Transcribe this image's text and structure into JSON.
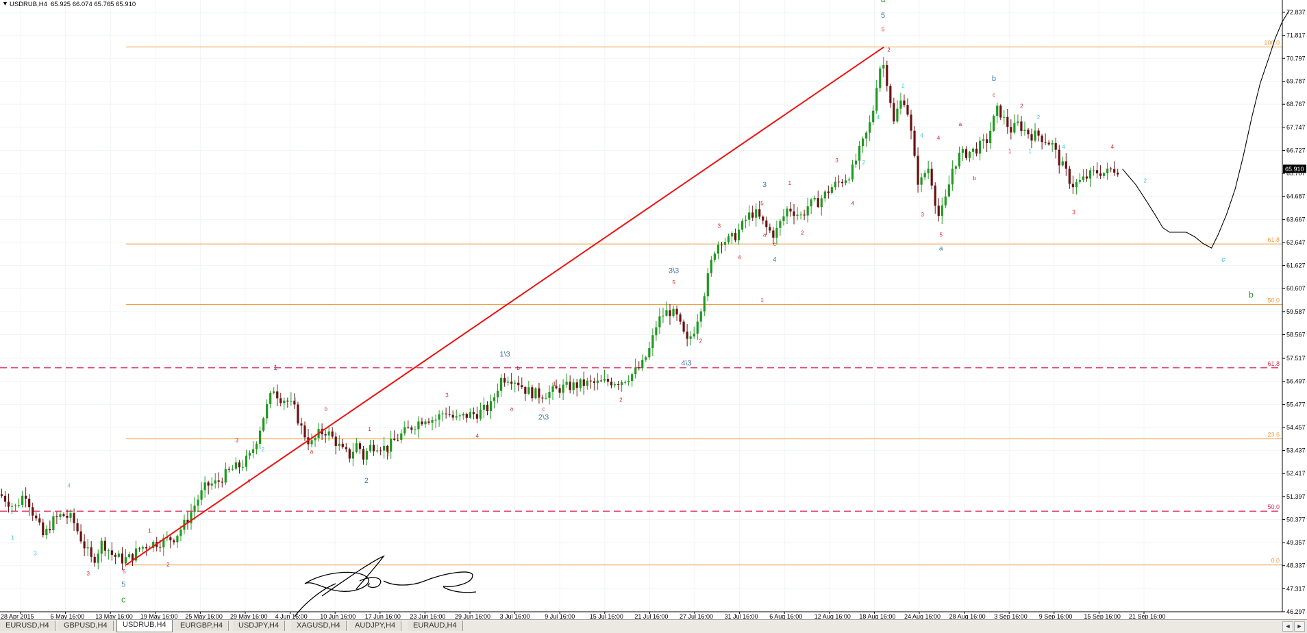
{
  "header": {
    "symbol": "USDRUB,H4",
    "quote": "65.925 66.074 65.765 65.910"
  },
  "colors": {
    "up": "#1e9a1e",
    "down": "#6b1010",
    "fib": "#f0a040",
    "trend": "#ee1111",
    "dash": "#e0305a",
    "wave_red": "#e02020",
    "wave_cyan": "#38c8d8",
    "wave_blue": "#4a78a8",
    "wave_green": "#2e9a2e",
    "projection": "#000000",
    "price_box": "#000000"
  },
  "chart_data": {
    "type": "candlestick",
    "title": "USDRUB,H4",
    "ylim": [
      46.297,
      72.837
    ],
    "y_ticks": [
      "72.837",
      "71.817",
      "70.797",
      "69.787",
      "68.767",
      "67.747",
      "66.727",
      "65.707",
      "64.687",
      "63.667",
      "62.647",
      "61.627",
      "60.607",
      "59.587",
      "58.567",
      "57.517",
      "56.497",
      "55.477",
      "54.457",
      "53.437",
      "52.417",
      "51.397",
      "50.377",
      "49.357",
      "48.337",
      "47.317",
      "46.297"
    ],
    "x_labels": [
      "28 Apr 2015",
      "6 May 16:00",
      "13 May 16:00",
      "19 May 16:00",
      "25 May 16:00",
      "29 May 16:00",
      "4 Jun 16:00",
      "10 Jun 16:00",
      "17 Jun 16:00",
      "23 Jun 16:00",
      "29 Jun 16:00",
      "3 Jul 16:00",
      "9 Jul 16:00",
      "15 Jul 16:00",
      "21 Jul 16:00",
      "27 Jul 16:00",
      "31 Jul 16:00",
      "6 Aug 16:00",
      "12 Aug 16:00",
      "18 Aug 16:00",
      "24 Aug 16:00",
      "28 Aug 16:00",
      "3 Sep 16:00",
      "9 Sep 16:00",
      "15 Sep 16:00",
      "21 Sep 16:00"
    ],
    "current_price": "65.910",
    "path": [
      [
        0,
        51.5
      ],
      [
        18,
        50.9
      ],
      [
        30,
        51.6
      ],
      [
        40,
        50.6
      ],
      [
        52,
        49.6
      ],
      [
        62,
        50.3
      ],
      [
        74,
        50.6
      ],
      [
        86,
        50.4
      ],
      [
        98,
        49.4
      ],
      [
        110,
        48.5
      ],
      [
        122,
        49.4
      ],
      [
        134,
        48.8
      ],
      [
        146,
        48.6
      ],
      [
        156,
        48.7
      ],
      [
        166,
        49.1
      ],
      [
        178,
        49.3
      ],
      [
        192,
        49.4
      ],
      [
        208,
        49.6
      ],
      [
        222,
        50.3
      ],
      [
        234,
        51.2
      ],
      [
        246,
        51.9
      ],
      [
        258,
        52.0
      ],
      [
        266,
        52.3
      ],
      [
        276,
        52.6
      ],
      [
        288,
        52.8
      ],
      [
        298,
        53.2
      ],
      [
        306,
        54.0
      ],
      [
        314,
        55.0
      ],
      [
        320,
        55.6
      ],
      [
        326,
        56.2
      ],
      [
        332,
        55.8
      ],
      [
        340,
        55.7
      ],
      [
        350,
        55.3
      ],
      [
        360,
        54.3
      ],
      [
        370,
        53.7
      ],
      [
        380,
        54.2
      ],
      [
        388,
        54.3
      ],
      [
        398,
        53.9
      ],
      [
        408,
        53.4
      ],
      [
        416,
        53.2
      ],
      [
        426,
        53.8
      ],
      [
        432,
        53.1
      ],
      [
        440,
        53.6
      ],
      [
        450,
        53.7
      ],
      [
        460,
        53.5
      ],
      [
        470,
        53.9
      ],
      [
        480,
        54.2
      ],
      [
        494,
        54.6
      ],
      [
        506,
        54.9
      ],
      [
        518,
        54.8
      ],
      [
        530,
        55.2
      ],
      [
        542,
        54.8
      ],
      [
        556,
        55.0
      ],
      [
        570,
        55.1
      ],
      [
        584,
        55.4
      ],
      [
        596,
        56.6
      ],
      [
        606,
        56.7
      ],
      [
        616,
        56.5
      ],
      [
        626,
        56.1
      ],
      [
        640,
        55.9
      ],
      [
        654,
        56.0
      ],
      [
        668,
        56.2
      ],
      [
        682,
        56.3
      ],
      [
        696,
        56.4
      ],
      [
        710,
        56.4
      ],
      [
        724,
        56.5
      ],
      [
        738,
        56.5
      ],
      [
        752,
        56.8
      ],
      [
        764,
        57.2
      ],
      [
        774,
        58.0
      ],
      [
        782,
        59.1
      ],
      [
        790,
        59.5
      ],
      [
        798,
        59.6
      ],
      [
        806,
        59.3
      ],
      [
        812,
        58.7
      ],
      [
        818,
        58.2
      ],
      [
        826,
        58.8
      ],
      [
        834,
        59.8
      ],
      [
        842,
        61.0
      ],
      [
        850,
        62.3
      ],
      [
        858,
        62.8
      ],
      [
        866,
        62.7
      ],
      [
        874,
        62.9
      ],
      [
        882,
        63.3
      ],
      [
        890,
        63.8
      ],
      [
        898,
        64.0
      ],
      [
        906,
        63.6
      ],
      [
        914,
        63.2
      ],
      [
        922,
        63.0
      ],
      [
        930,
        63.6
      ],
      [
        938,
        64.2
      ],
      [
        946,
        64.0
      ],
      [
        954,
        63.8
      ],
      [
        962,
        64.3
      ],
      [
        972,
        64.4
      ],
      [
        980,
        64.7
      ],
      [
        990,
        65.1
      ],
      [
        998,
        65.3
      ],
      [
        1006,
        65.5
      ],
      [
        1014,
        65.8
      ],
      [
        1022,
        66.6
      ],
      [
        1030,
        67.3
      ],
      [
        1038,
        68.2
      ],
      [
        1046,
        70.4
      ],
      [
        1052,
        70.5
      ],
      [
        1058,
        69.4
      ],
      [
        1064,
        67.9
      ],
      [
        1070,
        68.8
      ],
      [
        1076,
        69.0
      ],
      [
        1082,
        68.2
      ],
      [
        1088,
        66.4
      ],
      [
        1094,
        65.1
      ],
      [
        1100,
        65.7
      ],
      [
        1106,
        66.0
      ],
      [
        1112,
        64.7
      ],
      [
        1118,
        63.7
      ],
      [
        1126,
        64.6
      ],
      [
        1134,
        66.0
      ],
      [
        1142,
        66.5
      ],
      [
        1150,
        66.6
      ],
      [
        1158,
        66.7
      ],
      [
        1166,
        66.9
      ],
      [
        1174,
        67.1
      ],
      [
        1182,
        68.0
      ],
      [
        1188,
        68.6
      ],
      [
        1196,
        68.0
      ],
      [
        1204,
        67.6
      ],
      [
        1212,
        67.9
      ],
      [
        1220,
        67.6
      ],
      [
        1228,
        67.4
      ],
      [
        1236,
        67.4
      ],
      [
        1244,
        67.2
      ],
      [
        1252,
        67.0
      ],
      [
        1260,
        66.3
      ],
      [
        1268,
        65.8
      ],
      [
        1276,
        65.2
      ],
      [
        1284,
        65.3
      ],
      [
        1292,
        65.5
      ],
      [
        1300,
        65.7
      ],
      [
        1308,
        65.8
      ],
      [
        1316,
        65.7
      ],
      [
        1324,
        65.9
      ],
      [
        1332,
        65.9
      ]
    ],
    "projection_line": [
      [
        1336,
        65.9
      ],
      [
        1352,
        65.2
      ],
      [
        1366,
        64.4
      ],
      [
        1376,
        63.8
      ],
      [
        1384,
        63.3
      ],
      [
        1392,
        63.1
      ],
      [
        1400,
        63.1
      ],
      [
        1412,
        63.1
      ],
      [
        1422,
        62.9
      ],
      [
        1432,
        62.6
      ],
      [
        1442,
        62.4
      ],
      [
        1450,
        63.0
      ],
      [
        1460,
        63.9
      ],
      [
        1470,
        65.0
      ],
      [
        1480,
        66.5
      ],
      [
        1490,
        68.2
      ],
      [
        1500,
        69.7
      ],
      [
        1510,
        70.8
      ],
      [
        1518,
        71.7
      ],
      [
        1526,
        72.4
      ],
      [
        1534,
        72.9
      ]
    ],
    "fib_levels": [
      {
        "label": "100.0",
        "price": 71.3
      },
      {
        "label": "61.8",
        "price": 62.58
      },
      {
        "label": "50.0",
        "price": 59.9
      },
      {
        "label": "23.6",
        "price": 53.95
      },
      {
        "label": "0.0",
        "price": 48.37
      }
    ],
    "dashed_levels": [
      {
        "label": "61.8",
        "price": 57.1
      },
      {
        "label": "50.0",
        "price": 50.75
      }
    ],
    "trend_line": [
      [
        150,
        48.37
      ],
      [
        1052,
        71.3
      ]
    ],
    "wave_labels": [
      {
        "t": "a",
        "x": 1051,
        "p": 73.3,
        "c": "wave_green",
        "s": 12
      },
      {
        "t": "5",
        "x": 1051,
        "p": 72.6,
        "c": "wave_blue",
        "s": 11
      },
      {
        "t": "5",
        "x": 1051,
        "p": 72.0,
        "c": "wave_red",
        "s": 8
      },
      {
        "t": "2",
        "x": 1058,
        "p": 71.1,
        "c": "wave_red",
        "s": 8
      },
      {
        "t": "2",
        "x": 1075,
        "p": 69.5,
        "c": "wave_cyan",
        "s": 8
      },
      {
        "t": "3",
        "x": 1098,
        "p": 63.8,
        "c": "wave_red",
        "s": 8
      },
      {
        "t": "4",
        "x": 1117,
        "p": 67.2,
        "c": "wave_red",
        "s": 8
      },
      {
        "t": "4",
        "x": 1097,
        "p": 67.3,
        "c": "wave_cyan",
        "s": 8
      },
      {
        "t": "5",
        "x": 1120,
        "p": 62.9,
        "c": "wave_red",
        "s": 8
      },
      {
        "t": "a",
        "x": 1120,
        "p": 62.3,
        "c": "wave_blue",
        "s": 10
      },
      {
        "t": "a",
        "x": 1143,
        "p": 67.8,
        "c": "wave_red",
        "s": 8
      },
      {
        "t": "b",
        "x": 1160,
        "p": 65.4,
        "c": "wave_red",
        "s": 8
      },
      {
        "t": "b",
        "x": 1183,
        "p": 69.8,
        "c": "wave_blue",
        "s": 11
      },
      {
        "t": "c",
        "x": 1183,
        "p": 69.1,
        "c": "wave_red",
        "s": 8
      },
      {
        "t": "2",
        "x": 1216,
        "p": 68.6,
        "c": "wave_red",
        "s": 8
      },
      {
        "t": "1",
        "x": 1202,
        "p": 66.6,
        "c": "wave_red",
        "s": 8
      },
      {
        "t": "1",
        "x": 1226,
        "p": 66.6,
        "c": "wave_cyan",
        "s": 8
      },
      {
        "t": "2",
        "x": 1236,
        "p": 68.1,
        "c": "wave_cyan",
        "s": 8
      },
      {
        "t": "4",
        "x": 1266,
        "p": 66.8,
        "c": "wave_cyan",
        "s": 8
      },
      {
        "t": "3",
        "x": 1278,
        "p": 63.9,
        "c": "wave_red",
        "s": 8
      },
      {
        "t": "4",
        "x": 1324,
        "p": 66.8,
        "c": "wave_red",
        "s": 8
      },
      {
        "t": "2",
        "x": 1363,
        "p": 65.3,
        "c": "wave_cyan",
        "s": 8
      },
      {
        "t": "c",
        "x": 1456,
        "p": 61.8,
        "c": "wave_cyan",
        "s": 10
      },
      {
        "t": "b",
        "x": 1489,
        "p": 60.2,
        "c": "wave_green",
        "s": 13
      },
      {
        "t": "3",
        "x": 910,
        "p": 65.1,
        "c": "wave_blue",
        "s": 11
      },
      {
        "t": "5",
        "x": 907,
        "p": 64.3,
        "c": "wave_red",
        "s": 8
      },
      {
        "t": "1",
        "x": 940,
        "p": 65.2,
        "c": "wave_red",
        "s": 8
      },
      {
        "t": "3",
        "x": 996,
        "p": 66.2,
        "c": "wave_red",
        "s": 8
      },
      {
        "t": "4",
        "x": 1015,
        "p": 64.3,
        "c": "wave_red",
        "s": 8
      },
      {
        "t": "4",
        "x": 922,
        "p": 61.8,
        "c": "wave_blue",
        "s": 10
      },
      {
        "t": "c",
        "x": 922,
        "p": 62.5,
        "c": "wave_red",
        "s": 8
      },
      {
        "t": "a",
        "x": 910,
        "p": 62.9,
        "c": "wave_red",
        "s": 8
      },
      {
        "t": "2",
        "x": 955,
        "p": 63.0,
        "c": "wave_red",
        "s": 8
      },
      {
        "t": "1",
        "x": 907,
        "p": 60.0,
        "c": "wave_red",
        "s": 8
      },
      {
        "t": "3",
        "x": 856,
        "p": 63.3,
        "c": "wave_red",
        "s": 8
      },
      {
        "t": "4",
        "x": 880,
        "p": 61.9,
        "c": "wave_red",
        "s": 8
      },
      {
        "t": "3\\3",
        "x": 802,
        "p": 61.3,
        "c": "wave_blue",
        "s": 11
      },
      {
        "t": "5",
        "x": 802,
        "p": 60.8,
        "c": "wave_red",
        "s": 8
      },
      {
        "t": "2",
        "x": 834,
        "p": 58.2,
        "c": "wave_red",
        "s": 8
      },
      {
        "t": "4\\3",
        "x": 817,
        "p": 57.2,
        "c": "wave_blue",
        "s": 11
      },
      {
        "t": "2",
        "x": 739,
        "p": 55.6,
        "c": "wave_red",
        "s": 8
      },
      {
        "t": "1\\3",
        "x": 601,
        "p": 57.6,
        "c": "wave_blue",
        "s": 11
      },
      {
        "t": "b",
        "x": 617,
        "p": 57.0,
        "c": "wave_red",
        "s": 8
      },
      {
        "t": "a",
        "x": 609,
        "p": 55.2,
        "c": "wave_red",
        "s": 8
      },
      {
        "t": "2\\3",
        "x": 647,
        "p": 54.8,
        "c": "wave_blue",
        "s": 11
      },
      {
        "t": "c",
        "x": 647,
        "p": 55.2,
        "c": "wave_red",
        "s": 8
      },
      {
        "t": "1",
        "x": 660,
        "p": 56.3,
        "c": "wave_red",
        "s": 8
      },
      {
        "t": "3",
        "x": 532,
        "p": 55.8,
        "c": "wave_red",
        "s": 8
      },
      {
        "t": "4",
        "x": 568,
        "p": 54.0,
        "c": "wave_red",
        "s": 8
      },
      {
        "t": "1",
        "x": 328,
        "p": 57.0,
        "c": "wave_blue",
        "s": 11
      },
      {
        "t": "b",
        "x": 388,
        "p": 55.2,
        "c": "wave_red",
        "s": 8
      },
      {
        "t": "a",
        "x": 371,
        "p": 53.3,
        "c": "wave_red",
        "s": 8
      },
      {
        "t": "2",
        "x": 436,
        "p": 52.0,
        "c": "wave_blue",
        "s": 11
      },
      {
        "t": "1",
        "x": 440,
        "p": 54.3,
        "c": "wave_red",
        "s": 8
      },
      {
        "t": "2",
        "x": 462,
        "p": 53.2,
        "c": "wave_red",
        "s": 8
      },
      {
        "t": "3",
        "x": 282,
        "p": 53.8,
        "c": "wave_red",
        "s": 8
      },
      {
        "t": "4",
        "x": 296,
        "p": 52.0,
        "c": "wave_red",
        "s": 8
      },
      {
        "t": "1",
        "x": 178,
        "p": 49.8,
        "c": "wave_red",
        "s": 8
      },
      {
        "t": "2",
        "x": 200,
        "p": 48.3,
        "c": "wave_red",
        "s": 8
      },
      {
        "t": "5",
        "x": 148,
        "p": 48.0,
        "c": "wave_red",
        "s": 8
      },
      {
        "t": "5",
        "x": 147,
        "p": 47.4,
        "c": "wave_blue",
        "s": 11
      },
      {
        "t": "c",
        "x": 147,
        "p": 46.7,
        "c": "wave_green",
        "s": 13
      },
      {
        "t": "3",
        "x": 105,
        "p": 47.9,
        "c": "wave_red",
        "s": 8
      },
      {
        "t": "1",
        "x": 15,
        "p": 49.5,
        "c": "wave_cyan",
        "s": 8
      },
      {
        "t": "3",
        "x": 42,
        "p": 48.8,
        "c": "wave_cyan",
        "s": 8
      },
      {
        "t": "4",
        "x": 82,
        "p": 51.8,
        "c": "wave_cyan",
        "s": 8
      },
      {
        "t": "2",
        "x": 313,
        "p": 53.4,
        "c": "wave_cyan",
        "s": 8
      },
      {
        "t": "4",
        "x": 351,
        "p": 55.6,
        "c": "wave_cyan",
        "s": 8
      },
      {
        "t": "2",
        "x": 1028,
        "p": 66.1,
        "c": "wave_cyan",
        "s": 8
      },
      {
        "t": "4",
        "x": 1045,
        "p": 68.1,
        "c": "wave_cyan",
        "s": 8
      }
    ],
    "annotation": {
      "type": "handwritten-signature"
    }
  },
  "tabs": [
    {
      "label": "EURUSD,H4",
      "active": false
    },
    {
      "label": "GBPUSD,H4",
      "active": false
    },
    {
      "label": "USDRUB,H4",
      "active": true
    },
    {
      "label": "EURGBP,H4",
      "active": false
    },
    {
      "label": "USDJPY,H4",
      "active": false
    },
    {
      "label": "XAGUSD,H4",
      "active": false
    },
    {
      "label": "AUDJPY,H4",
      "active": false
    },
    {
      "label": "EURAUD,H4",
      "active": false
    }
  ],
  "nav": {
    "prev": "◄",
    "next": "►"
  }
}
